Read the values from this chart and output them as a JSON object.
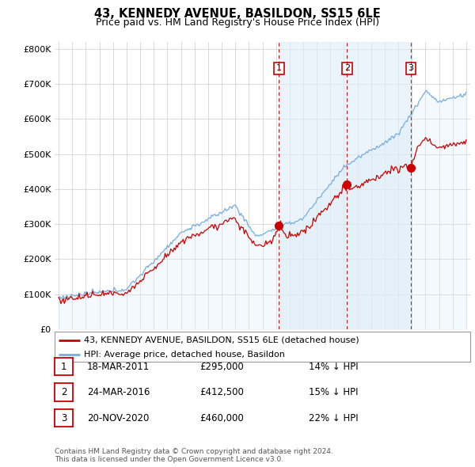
{
  "title": "43, KENNEDY AVENUE, BASILDON, SS15 6LE",
  "subtitle": "Price paid vs. HM Land Registry's House Price Index (HPI)",
  "footer": "Contains HM Land Registry data © Crown copyright and database right 2024.\nThis data is licensed under the Open Government Licence v3.0.",
  "legend_line1": "43, KENNEDY AVENUE, BASILDON, SS15 6LE (detached house)",
  "legend_line2": "HPI: Average price, detached house, Basildon",
  "sale_color": "#cc0000",
  "hpi_color": "#7aaddb",
  "hpi_fill_color": "#ddeef8",
  "shade_fill_color": "#ddeef8",
  "vline_color": "#cc0000",
  "background_color": "#ffffff",
  "grid_color": "#cccccc",
  "ylim": [
    0,
    820000
  ],
  "yticks": [
    0,
    100000,
    200000,
    300000,
    400000,
    500000,
    600000,
    700000,
    800000
  ],
  "ytick_labels": [
    "£0",
    "£100K",
    "£200K",
    "£300K",
    "£400K",
    "£500K",
    "£600K",
    "£700K",
    "£800K"
  ],
  "xlim_start": 1995,
  "xlim_end": 2025,
  "sales": [
    {
      "date": 2011.21,
      "price": 295000,
      "label": "1"
    },
    {
      "date": 2016.23,
      "price": 412500,
      "label": "2"
    },
    {
      "date": 2020.92,
      "price": 460000,
      "label": "3"
    }
  ],
  "sale_table": [
    {
      "num": "1",
      "date": "18-MAR-2011",
      "price": "£295,000",
      "note": "14% ↓ HPI"
    },
    {
      "num": "2",
      "date": "24-MAR-2016",
      "price": "£412,500",
      "note": "15% ↓ HPI"
    },
    {
      "num": "3",
      "date": "20-NOV-2020",
      "price": "£460,000",
      "note": "22% ↓ HPI"
    }
  ]
}
